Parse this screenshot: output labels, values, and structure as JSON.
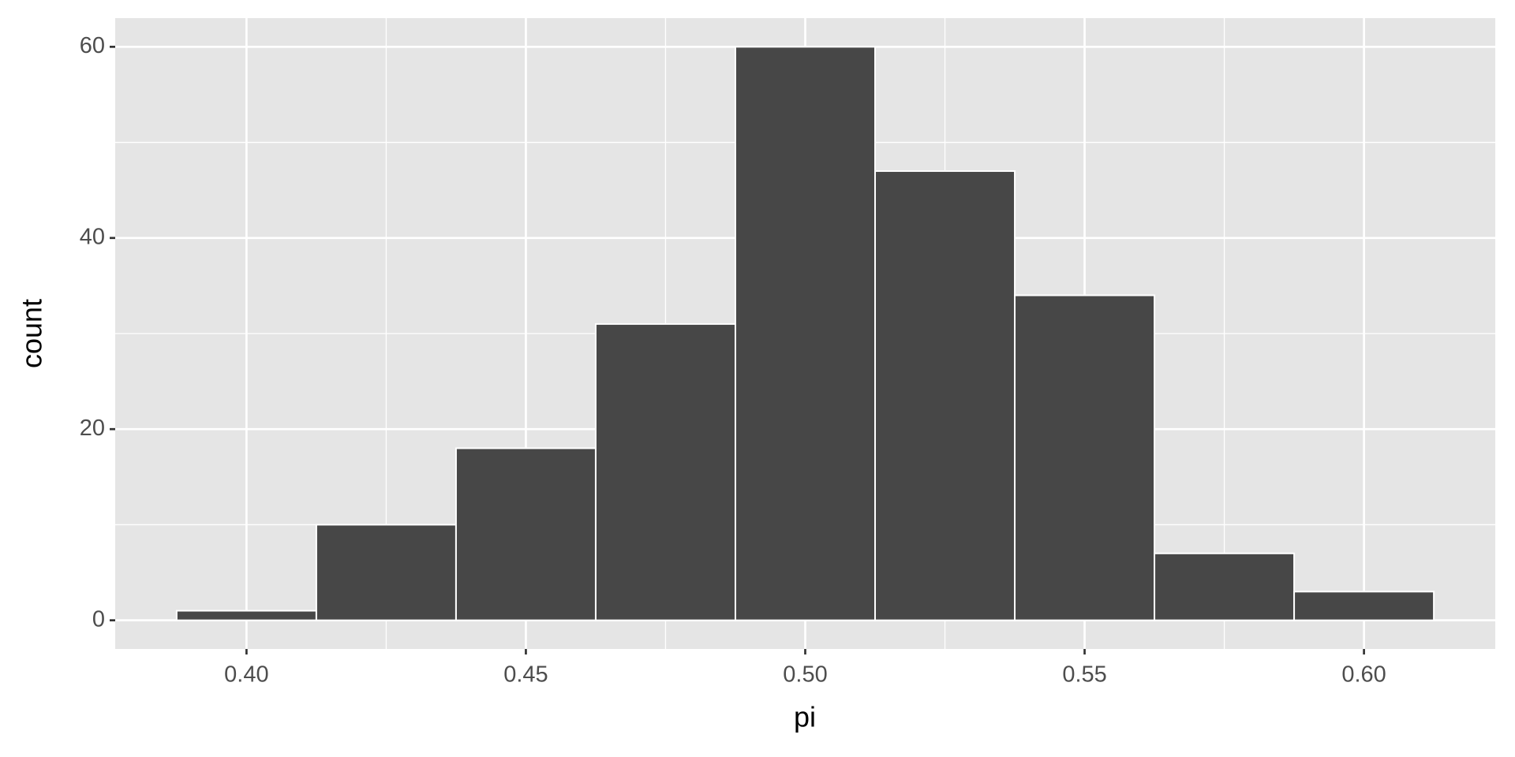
{
  "chart_data": {
    "type": "histogram",
    "x_label": "pi",
    "y_label": "count",
    "bins": [
      0.3875,
      0.4125,
      0.4375,
      0.4625,
      0.4875,
      0.5125,
      0.5375,
      0.5625,
      0.5875,
      0.6125
    ],
    "values": [
      1,
      10,
      18,
      31,
      60,
      47,
      34,
      7,
      3
    ],
    "color": "#474747",
    "edge_color": "#ffffff",
    "panel_color": "#e5e5e5",
    "xlim": [
      0.3765,
      0.6235
    ],
    "ylim": [
      -3,
      63
    ],
    "xticks": [
      {
        "value": 0.4,
        "label": "0.40"
      },
      0.45,
      {
        "value": 0.5,
        "label": "0.50"
      },
      0.55,
      {
        "value": 0.6,
        "label": "0.60"
      }
    ],
    "yticks": [
      0,
      20,
      40,
      60
    ],
    "x_minor_grid": [
      0.425,
      0.475,
      0.525,
      0.575
    ],
    "y_minor_grid": [
      10,
      30,
      50
    ],
    "grid": true
  }
}
